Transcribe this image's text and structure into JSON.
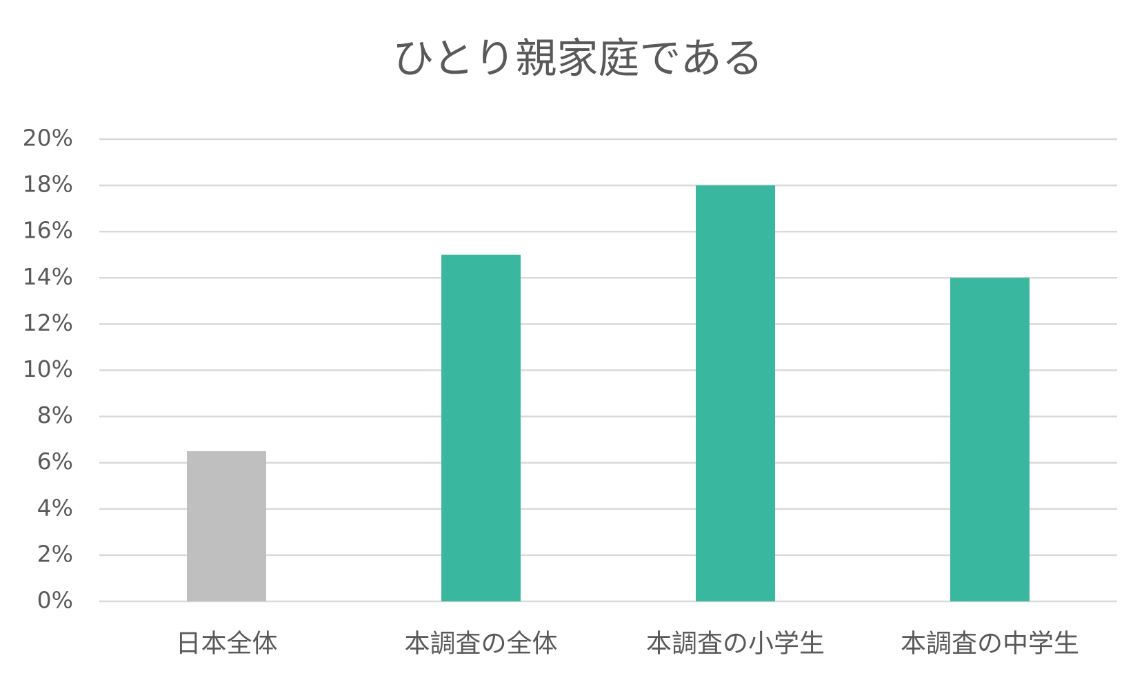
{
  "chart_data": {
    "type": "bar",
    "title": "ひとり親家庭である",
    "categories": [
      "日本全体",
      "本調査の全体",
      "本調査の小学生",
      "本調査の中学生"
    ],
    "values": [
      6.5,
      15,
      18,
      14
    ],
    "colors": [
      "#bfbfbf",
      "#3ab79f",
      "#3ab79f",
      "#3ab79f"
    ],
    "ylim": [
      0,
      20
    ],
    "yticks": [
      {
        "value": 0,
        "label": "0%"
      },
      {
        "value": 2,
        "label": "2%"
      },
      {
        "value": 4,
        "label": "4%"
      },
      {
        "value": 6,
        "label": "6%"
      },
      {
        "value": 8,
        "label": "8%"
      },
      {
        "value": 10,
        "label": "10%"
      },
      {
        "value": 12,
        "label": "12%"
      },
      {
        "value": 14,
        "label": "14%"
      },
      {
        "value": 16,
        "label": "16%"
      },
      {
        "value": 18,
        "label": "18%"
      },
      {
        "value": 20,
        "label": "20%"
      }
    ],
    "grid": true
  }
}
